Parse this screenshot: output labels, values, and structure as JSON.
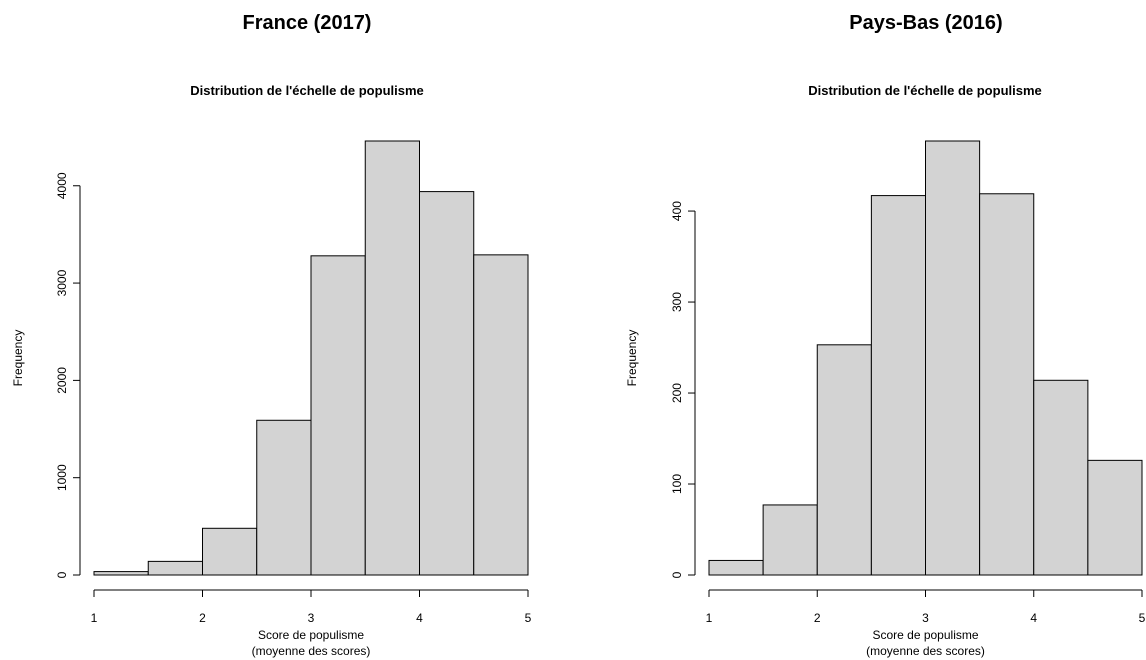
{
  "chart_data": [
    {
      "type": "bar",
      "panel_title": "France (2017)",
      "title": "Distribution de l'échelle de populisme",
      "xlabel": "Score de populisme",
      "xlabel2": "(moyenne des scores)",
      "ylabel": "Frequency",
      "bin_edges": [
        1,
        1.5,
        2,
        2.5,
        3,
        3.5,
        4,
        4.5,
        5
      ],
      "values": [
        35,
        140,
        480,
        1590,
        3280,
        4460,
        3940,
        3290
      ],
      "xticks": [
        1,
        2,
        3,
        4,
        5
      ],
      "yticks": [
        0,
        1000,
        2000,
        3000,
        4000
      ],
      "ylim": [
        0,
        4460
      ],
      "xlim": [
        1,
        5
      ]
    },
    {
      "type": "bar",
      "panel_title": "Pays-Bas (2016)",
      "title": "Distribution de l'échelle de populisme",
      "xlabel": "Score de populisme",
      "xlabel2": "(moyenne des scores)",
      "ylabel": "Frequency",
      "bin_edges": [
        1,
        1.5,
        2,
        2.5,
        3,
        3.5,
        4,
        4.5,
        5
      ],
      "values": [
        16,
        77,
        253,
        417,
        477,
        419,
        214,
        126
      ],
      "xticks": [
        1,
        2,
        3,
        4,
        5
      ],
      "yticks": [
        0,
        100,
        200,
        300,
        400
      ],
      "ylim": [
        0,
        477
      ],
      "xlim": [
        1,
        5
      ]
    }
  ]
}
